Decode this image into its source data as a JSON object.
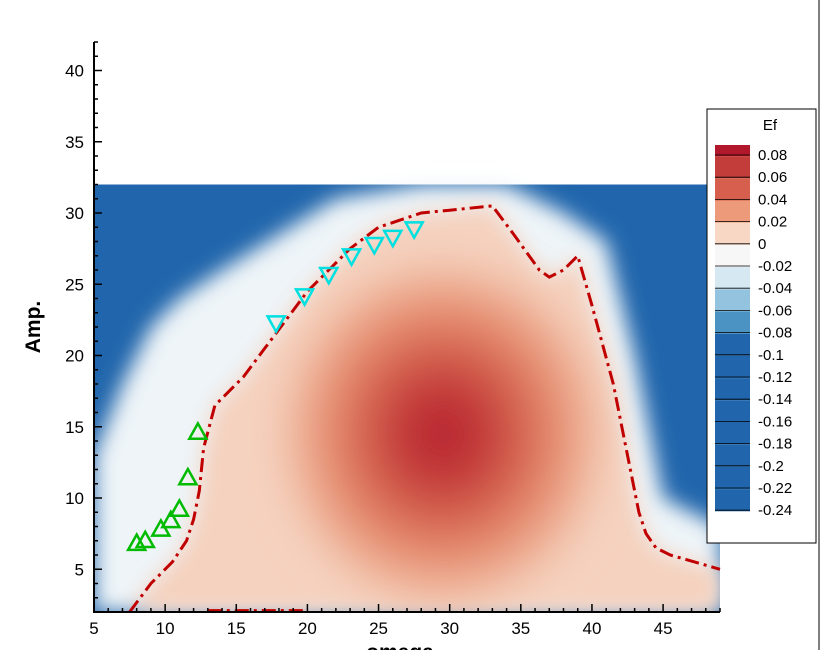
{
  "chart_data": {
    "type": "heatmap",
    "xlabel": "omega",
    "ylabel": "Amp.",
    "xlim": [
      5,
      49
    ],
    "ylim": [
      2,
      42
    ],
    "xticks": [
      "5",
      "10",
      "15",
      "20",
      "25",
      "30",
      "35",
      "40",
      "45"
    ],
    "yticks": [
      "5",
      "10",
      "15",
      "20",
      "25",
      "30",
      "35",
      "40"
    ],
    "field_extent": {
      "x": [
        5,
        49
      ],
      "y": [
        2,
        32
      ]
    },
    "field_peak": {
      "x": 29.5,
      "y": 14.5
    },
    "contour_zero": [
      [
        7.5,
        2
      ],
      [
        9,
        4
      ],
      [
        10.5,
        5.5
      ],
      [
        11.5,
        7
      ],
      [
        12,
        8.5
      ],
      [
        12.4,
        10.5
      ],
      [
        12.7,
        13.5
      ],
      [
        13.5,
        16.5
      ],
      [
        15.5,
        18.5
      ],
      [
        17,
        20.5
      ],
      [
        18.5,
        22.5
      ],
      [
        20,
        24.5
      ],
      [
        21.5,
        26
      ],
      [
        23,
        27.5
      ],
      [
        25,
        29
      ],
      [
        28,
        30
      ],
      [
        30,
        30.2
      ],
      [
        33,
        30.5
      ],
      [
        34.5,
        28.5
      ],
      [
        36.3,
        26
      ],
      [
        37,
        25.5
      ],
      [
        38,
        26
      ],
      [
        39,
        27
      ],
      [
        40,
        23.5
      ],
      [
        41.5,
        18
      ],
      [
        42.5,
        13
      ],
      [
        43.3,
        9
      ],
      [
        43.8,
        7.5
      ],
      [
        44.5,
        6.5
      ],
      [
        45.5,
        6
      ],
      [
        49,
        5
      ]
    ],
    "contour_bottom": [
      [
        13,
        2.1
      ],
      [
        20,
        2.1
      ]
    ],
    "series": [
      {
        "marker": "triangle-up",
        "color": "#00bb00",
        "points": [
          [
            8.0,
            6.8
          ],
          [
            8.6,
            7.0
          ],
          [
            9.7,
            7.8
          ],
          [
            10.4,
            8.4
          ],
          [
            11.0,
            9.2
          ],
          [
            11.6,
            11.4
          ],
          [
            12.3,
            14.6
          ]
        ]
      },
      {
        "marker": "triangle-down",
        "color": "#00e0e0",
        "points": [
          [
            17.8,
            22.3
          ],
          [
            19.8,
            24.2
          ],
          [
            21.5,
            25.7
          ],
          [
            23.1,
            27.0
          ],
          [
            24.7,
            27.8
          ],
          [
            26.0,
            28.3
          ],
          [
            27.5,
            28.9
          ]
        ]
      }
    ],
    "colorbar": {
      "title": "Ef",
      "levels": [
        "0.08",
        "0.06",
        "0.04",
        "0.02",
        "0",
        "-0.02",
        "-0.04",
        "-0.06",
        "-0.08",
        "-0.1",
        "-0.12",
        "-0.14",
        "-0.16",
        "-0.18",
        "-0.2",
        "-0.22",
        "-0.24"
      ],
      "colors": [
        "#b2182b",
        "#c33d3a",
        "#d6604d",
        "#ec9a79",
        "#f8d8c5",
        "#f7f7f7",
        "#d6e8f2",
        "#93c3df",
        "#4b93c3",
        "#2166ac",
        "#2166ac",
        "#2166ac",
        "#2166ac",
        "#2166ac",
        "#2166ac",
        "#2166ac",
        "#2166ac",
        "#2166ac"
      ]
    },
    "colors": {
      "contour": "#c00000",
      "low": "#2166ac",
      "high": "#b2182b"
    }
  }
}
